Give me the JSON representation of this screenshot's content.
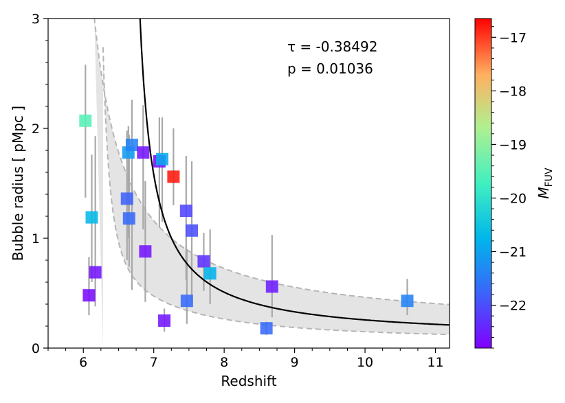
{
  "chart_data": {
    "type": "scatter",
    "xlabel": "Redshift",
    "ylabel": "Bubble radius [ pMpc ]",
    "xlim": [
      5.5,
      11.2
    ],
    "ylim": [
      0,
      3
    ],
    "xticks": [
      6,
      7,
      8,
      9,
      10,
      11
    ],
    "xtick_labels": [
      "6",
      "7",
      "8",
      "9",
      "10",
      "11"
    ],
    "yticks": [
      0,
      1,
      2,
      3
    ],
    "ytick_labels": [
      "0",
      "1",
      "2",
      "3"
    ],
    "annotation_tau": "τ = -0.38492",
    "annotation_p": "p = 0.01036",
    "colorbar": {
      "label": "M",
      "label_sub": "FUV",
      "range": [
        -22.8,
        -16.65
      ],
      "ticks": [
        -17,
        -18,
        -19,
        -20,
        -21,
        -22
      ],
      "tick_labels": [
        "−17",
        "−18",
        "−19",
        "−20",
        "−21",
        "−22"
      ],
      "colormap": "rainbow"
    },
    "points": [
      {
        "z": 6.03,
        "r": 2.07,
        "err": [
          1.37,
          2.58
        ],
        "muv": -19.5
      },
      {
        "z": 6.08,
        "r": 0.48,
        "err": [
          0.3,
          0.83
        ],
        "muv": -22.7
      },
      {
        "z": 6.12,
        "r": 1.19,
        "err": [
          0.6,
          1.76
        ],
        "muv": -20.7
      },
      {
        "z": 6.17,
        "r": 0.69,
        "err": [
          0.38,
          1.93
        ],
        "muv": -22.6
      },
      {
        "z": 6.62,
        "r": 1.36,
        "err": [
          0.8,
          1.98
        ],
        "muv": -21.8
      },
      {
        "z": 6.64,
        "r": 1.78,
        "err": [
          1.0,
          2.02
        ],
        "muv": -21.1
      },
      {
        "z": 6.65,
        "r": 1.18,
        "err": [
          0.74,
          1.94
        ],
        "muv": -21.7
      },
      {
        "z": 6.69,
        "r": 1.85,
        "err": [
          0.53,
          2.26
        ],
        "muv": -21.4
      },
      {
        "z": 6.85,
        "r": 1.78,
        "err": [
          1.08,
          2.21
        ],
        "muv": -22.6
      },
      {
        "z": 6.88,
        "r": 0.88,
        "err": [
          0.42,
          1.52
        ],
        "muv": -22.6
      },
      {
        "z": 7.08,
        "r": 1.7,
        "err": [
          1.1,
          2.1
        ],
        "muv": -22.7
      },
      {
        "z": 7.12,
        "r": 1.72,
        "err": [
          1.15,
          2.1
        ],
        "muv": -20.9
      },
      {
        "z": 7.15,
        "r": 0.25,
        "err": [
          0.15,
          0.36
        ],
        "muv": -22.6
      },
      {
        "z": 7.28,
        "r": 1.56,
        "err": [
          1.3,
          2.0
        ],
        "muv": -16.8
      },
      {
        "z": 7.46,
        "r": 1.25,
        "err": [
          0.62,
          1.75
        ],
        "muv": -22.1
      },
      {
        "z": 7.47,
        "r": 0.43,
        "err": [
          0.22,
          0.9
        ],
        "muv": -21.7
      },
      {
        "z": 7.54,
        "r": 1.07,
        "err": [
          0.42,
          1.7
        ],
        "muv": -22.0
      },
      {
        "z": 7.71,
        "r": 0.79,
        "err": [
          0.52,
          1.05
        ],
        "muv": -22.3
      },
      {
        "z": 7.8,
        "r": 0.68,
        "err": [
          0.4,
          1.08
        ],
        "muv": -20.8
      },
      {
        "z": 8.6,
        "r": 0.18,
        "err": [
          0.12,
          0.24
        ],
        "muv": -21.7
      },
      {
        "z": 8.68,
        "r": 0.56,
        "err": [
          0.28,
          1.03
        ],
        "muv": -22.5
      },
      {
        "z": 10.6,
        "r": 0.43,
        "err": [
          0.3,
          0.63
        ],
        "muv": -21.4
      }
    ],
    "fit_curve": {
      "z0": 6.25,
      "amplitude": 0.6,
      "offset": 0.12
    },
    "band": {
      "lower": {
        "z0": 6.25,
        "amplitude": 0.6,
        "offset": 0.12,
        "scale": 0.55
      },
      "upper": {
        "z0": 5.7,
        "amplitude": 1.3,
        "offset": 0.16
      }
    }
  }
}
